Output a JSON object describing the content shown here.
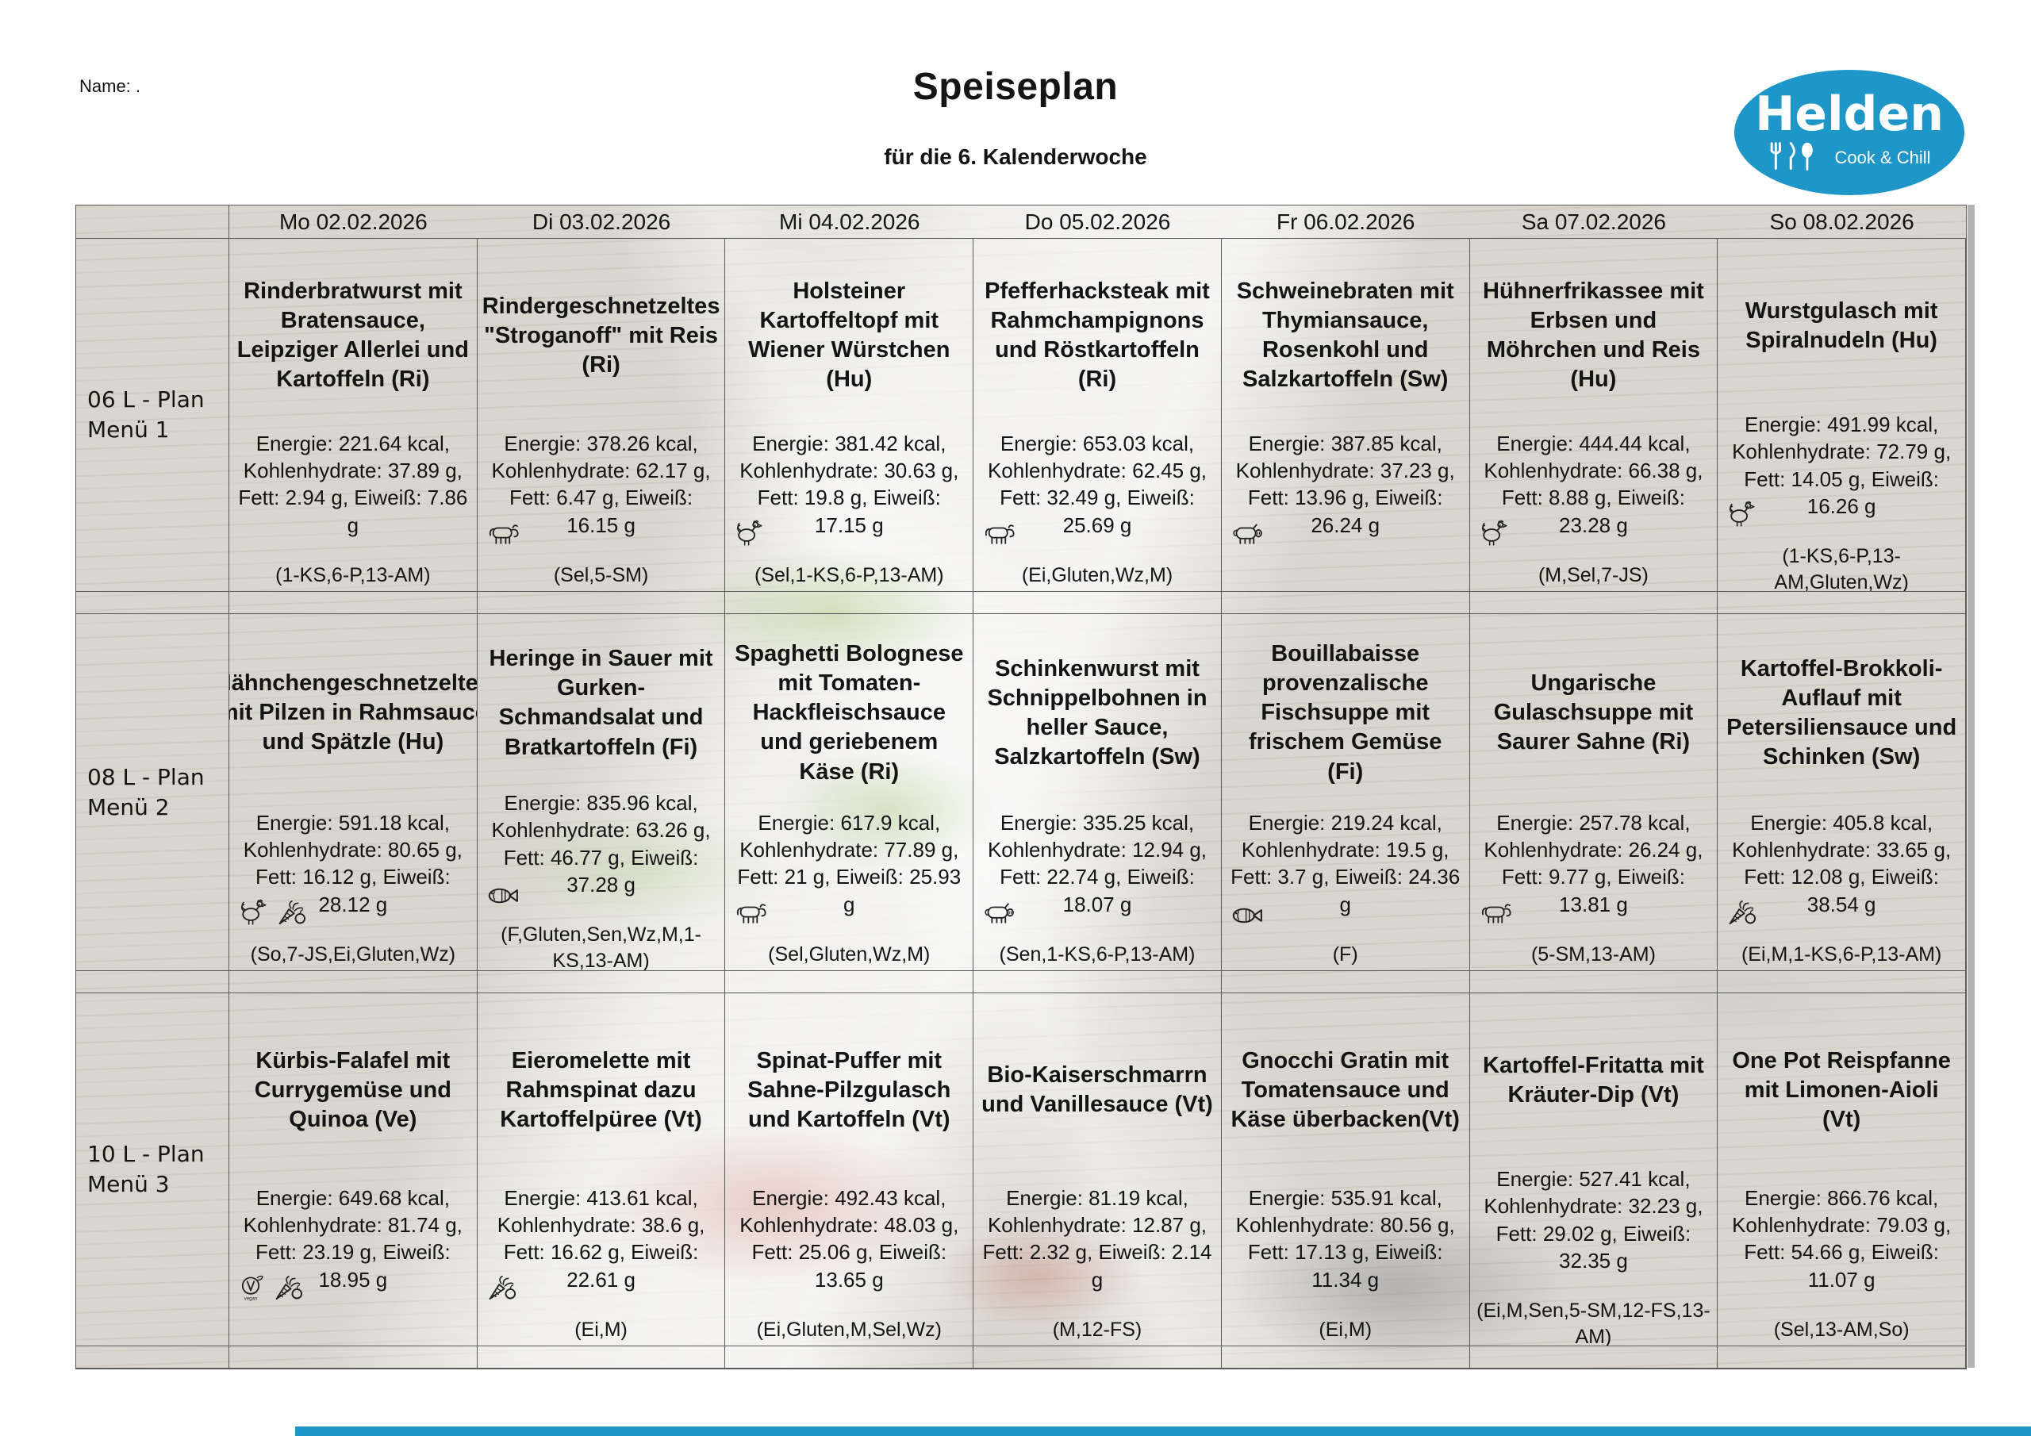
{
  "page": {
    "name_label": "Name: .",
    "title": "Speiseplan",
    "subtitle": "für die 6. Kalenderwoche"
  },
  "logo": {
    "brand": "Helden",
    "tagline": "Cook & Chill",
    "bg_color": "#1e96c8"
  },
  "accent_color": "#1e96c8",
  "table": {
    "days": [
      "Mo 02.02.2026",
      "Di 03.02.2026",
      "Mi 04.02.2026",
      "Do 05.02.2026",
      "Fr 06.02.2026",
      "Sa 07.02.2026",
      "So 08.02.2026"
    ],
    "menus": [
      {
        "label": "06 L - Plan\nMenü 1",
        "cells": [
          {
            "title": "Rinderbratwurst mit Bratensauce, Leipziger Allerlei und Kartoffeln (Ri)",
            "nutrition": "Energie: 221.64 kcal, Kohlenhydrate: 37.89 g, Fett: 2.94 g, Eiweiß: 7.86 g",
            "icons": [],
            "allergens": "(1-KS,6-P,13-AM)"
          },
          {
            "title": "Rindergeschnetzeltes \"Stroganoff\" mit Reis (Ri)",
            "nutrition": "Energie: 378.26 kcal, Kohlenhydrate: 62.17 g, Fett: 6.47 g, Eiweiß: 16.15 g",
            "icons": [
              "cow"
            ],
            "allergens": "(Sel,5-SM)"
          },
          {
            "title": "Holsteiner Kartoffeltopf mit Wiener Würstchen (Hu)",
            "nutrition": "Energie: 381.42 kcal, Kohlenhydrate: 30.63 g, Fett: 19.8 g, Eiweiß: 17.15 g",
            "icons": [
              "hen"
            ],
            "allergens": "(Sel,1-KS,6-P,13-AM)"
          },
          {
            "title": "Pfefferhacksteak mit Rahmchampignons und Röstkartoffeln (Ri)",
            "nutrition": "Energie: 653.03 kcal, Kohlenhydrate: 62.45 g, Fett: 32.49 g, Eiweiß: 25.69 g",
            "icons": [
              "cow"
            ],
            "allergens": "(Ei,Gluten,Wz,M)"
          },
          {
            "title": "Schweinebraten mit Thymiansauce, Rosenkohl und Salzkartoffeln (Sw)",
            "nutrition": "Energie: 387.85 kcal, Kohlenhydrate: 37.23 g, Fett: 13.96 g, Eiweiß: 26.24 g",
            "icons": [
              "pig"
            ],
            "allergens": ""
          },
          {
            "title": "Hühnerfrikassee mit Erbsen und Möhrchen und Reis (Hu)",
            "nutrition": "Energie: 444.44 kcal, Kohlenhydrate: 66.38 g, Fett: 8.88 g, Eiweiß: 23.28 g",
            "icons": [
              "hen"
            ],
            "allergens": "(M,Sel,7-JS)"
          },
          {
            "title": "Wurstgulasch mit Spiralnudeln (Hu)",
            "nutrition": "Energie: 491.99 kcal, Kohlenhydrate: 72.79 g, Fett: 14.05 g, Eiweiß: 16.26 g",
            "icons": [
              "hen"
            ],
            "allergens": "(1-KS,6-P,13-AM,Gluten,Wz)"
          }
        ]
      },
      {
        "label": "08 L - Plan\nMenü 2",
        "cells": [
          {
            "title": "Hähnchengeschnetzeltes mit Pilzen in Rahmsauce und Spätzle (Hu)",
            "nutrition": "Energie: 591.18 kcal, Kohlenhydrate: 80.65 g, Fett: 16.12 g, Eiweiß: 28.12 g",
            "icons": [
              "hen",
              "vegetables"
            ],
            "allergens": "(So,7-JS,Ei,Gluten,Wz)"
          },
          {
            "title": "Heringe in Sauer mit Gurken-Schmandsalat und Bratkartoffeln (Fi)",
            "nutrition": "Energie: 835.96 kcal, Kohlenhydrate: 63.26 g, Fett: 46.77 g, Eiweiß: 37.28 g",
            "icons": [
              "fish"
            ],
            "allergens": "(F,Gluten,Sen,Wz,M,1-KS,13-AM)"
          },
          {
            "title": "Spaghetti Bolognese mit Tomaten-Hackfleischsauce und geriebenem Käse (Ri)",
            "nutrition": "Energie: 617.9 kcal, Kohlenhydrate: 77.89 g, Fett: 21 g, Eiweiß: 25.93 g",
            "icons": [
              "cow"
            ],
            "allergens": "(Sel,Gluten,Wz,M)"
          },
          {
            "title": "Schinkenwurst mit Schnippelbohnen in heller Sauce, Salzkartoffeln (Sw)",
            "nutrition": "Energie: 335.25 kcal, Kohlenhydrate: 12.94 g, Fett: 22.74 g, Eiweiß: 18.07 g",
            "icons": [
              "pig"
            ],
            "allergens": "(Sen,1-KS,6-P,13-AM)"
          },
          {
            "title": "Bouillabaisse provenzalische Fischsuppe mit frischem Gemüse (Fi)",
            "nutrition": "Energie: 219.24 kcal, Kohlenhydrate: 19.5 g, Fett: 3.7 g, Eiweiß: 24.36 g",
            "icons": [
              "fish"
            ],
            "allergens": "(F)"
          },
          {
            "title": "Ungarische Gulaschsuppe mit Saurer Sahne (Ri)",
            "nutrition": "Energie: 257.78 kcal, Kohlenhydrate: 26.24 g, Fett: 9.77 g, Eiweiß: 13.81 g",
            "icons": [
              "cow"
            ],
            "allergens": "(5-SM,13-AM)"
          },
          {
            "title": "Kartoffel-Brokkoli-Auflauf mit Petersiliensauce und Schinken (Sw)",
            "nutrition": "Energie: 405.8 kcal, Kohlenhydrate: 33.65 g, Fett: 12.08 g, Eiweiß: 38.54 g",
            "icons": [
              "vegetables"
            ],
            "allergens": "(Ei,M,1-KS,6-P,13-AM)"
          }
        ]
      },
      {
        "label": "10 L - Plan\nMenü 3",
        "cells": [
          {
            "title": "Kürbis-Falafel mit Currygemüse und Quinoa (Ve)",
            "nutrition": "Energie: 649.68 kcal, Kohlenhydrate: 81.74 g, Fett: 23.19 g, Eiweiß: 18.95 g",
            "icons": [
              "vegan",
              "vegetables"
            ],
            "allergens": ""
          },
          {
            "title": "Eieromelette mit Rahmspinat dazu Kartoffelpüree (Vt)",
            "nutrition": "Energie: 413.61 kcal, Kohlenhydrate: 38.6 g, Fett: 16.62 g, Eiweiß: 22.61 g",
            "icons": [
              "vegetables"
            ],
            "allergens": "(Ei,M)"
          },
          {
            "title": "Spinat-Puffer mit Sahne-Pilzgulasch und Kartoffeln (Vt)",
            "nutrition": "Energie: 492.43 kcal, Kohlenhydrate: 48.03 g, Fett: 25.06 g, Eiweiß: 13.65 g",
            "icons": [],
            "allergens": "(Ei,Gluten,M,Sel,Wz)"
          },
          {
            "title": "Bio-Kaiserschmarrn und Vanillesauce (Vt)",
            "nutrition": "Energie: 81.19 kcal, Kohlenhydrate: 12.87 g, Fett: 2.32 g, Eiweiß: 2.14 g",
            "icons": [],
            "allergens": "(M,12-FS)"
          },
          {
            "title": "Gnocchi Gratin mit Tomatensauce und Käse überbacken(Vt)",
            "nutrition": "Energie: 535.91 kcal, Kohlenhydrate: 80.56 g, Fett: 17.13 g, Eiweiß: 11.34 g",
            "icons": [],
            "allergens": "(Ei,M)"
          },
          {
            "title": "Kartoffel-Fritatta mit Kräuter-Dip (Vt)",
            "nutrition": "Energie: 527.41 kcal, Kohlenhydrate: 32.23 g, Fett: 29.02 g, Eiweiß: 32.35 g",
            "icons": [],
            "allergens": "(Ei,M,Sen,5-SM,12-FS,13-AM)"
          },
          {
            "title": "One Pot Reispfanne mit Limonen-Aioli (Vt)",
            "nutrition": "Energie: 866.76 kcal, Kohlenhydrate: 79.03 g, Fett: 54.66 g, Eiweiß: 11.07 g",
            "icons": [],
            "allergens": "(Sel,13-AM,So)"
          }
        ]
      }
    ]
  }
}
